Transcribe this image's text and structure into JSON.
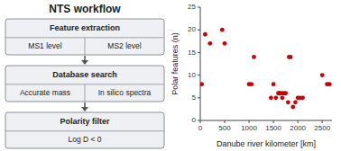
{
  "chart_data": {
    "type": "scatter",
    "annotations": [
      "NTS workflow",
      "Feature extraction",
      "MS1 level",
      "MS2 level",
      "Database search",
      "Accurate mass",
      "In silico spectra",
      "Polarity filter",
      "Log D < 0"
    ],
    "x": [
      30,
      100,
      200,
      450,
      500,
      1000,
      1050,
      1100,
      1450,
      1500,
      1550,
      1600,
      1620,
      1650,
      1680,
      1700,
      1750,
      1800,
      1820,
      1850,
      1900,
      1950,
      2000,
      2050,
      2100,
      2500,
      2600,
      2650
    ],
    "values": [
      8,
      19,
      17,
      20,
      17,
      8,
      8,
      14,
      5,
      8,
      5,
      6,
      6,
      6,
      5,
      6,
      6,
      4,
      14,
      14,
      3,
      4,
      5,
      5,
      5,
      10,
      8,
      8
    ],
    "color": "#cc0000",
    "xlim": [
      0,
      2700
    ],
    "ylim": [
      0,
      25
    ],
    "xticks": [
      0,
      500,
      1000,
      1500,
      2000,
      2500
    ],
    "yticks": [
      0,
      5,
      10,
      15,
      20,
      25
    ],
    "xlabel": "Danube river kilometer [km]",
    "ylabel": "Polar features (n)"
  }
}
